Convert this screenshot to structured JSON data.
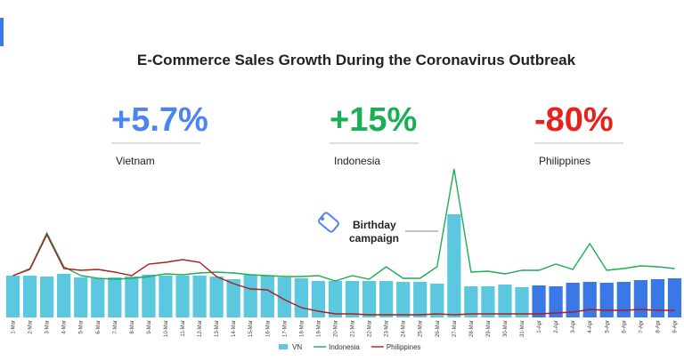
{
  "chart_data": {
    "type": "bar_line",
    "title": "E-Commerce Sales Growth During the Coronavirus Outbreak",
    "stats": [
      {
        "value_label": "+5.7%",
        "country": "Vietnam",
        "color": "#4c84f0"
      },
      {
        "value_label": "+15%",
        "country": "Indonesia",
        "color": "#1aae55"
      },
      {
        "value_label": "-80%",
        "country": "Philippines",
        "color": "#e8211c"
      }
    ],
    "annotation": [
      "Birthday",
      "campaign"
    ],
    "categories": [
      "1-Mar",
      "2-Mar",
      "3-Mar",
      "4-Mar",
      "5-Mar",
      "6-Mar",
      "7-Mar",
      "8-Mar",
      "9-Mar",
      "10-Mar",
      "11-Mar",
      "12-Mar",
      "13-Mar",
      "14-Mar",
      "15-Mar",
      "16-Mar",
      "17-Mar",
      "18-Mar",
      "19-Mar",
      "20-Mar",
      "21-Mar",
      "22-Mar",
      "23-Mar",
      "24-Mar",
      "25-Mar",
      "26-Mar",
      "27-Mar",
      "28-Mar",
      "29-Mar",
      "30-Mar",
      "31-Mar",
      "1-Apr",
      "2-Apr",
      "3-Apr",
      "4-Apr",
      "5-Apr",
      "6-Apr",
      "7-Apr",
      "8-Apr",
      "9-Apr"
    ],
    "series": [
      {
        "name": "VN",
        "kind": "bar",
        "color": "#5bc8e0",
        "highlight_color": "#3b78e7",
        "highlight_from": "1-Apr",
        "values": [
          47,
          47,
          46,
          49,
          45,
          44,
          45,
          46,
          48,
          47,
          47,
          47,
          46,
          43,
          48,
          47,
          45,
          44,
          41,
          41,
          41,
          41,
          41,
          40,
          40,
          38,
          116,
          35,
          35,
          37,
          34,
          36,
          35,
          39,
          40,
          39,
          40,
          42,
          43,
          44
        ]
      },
      {
        "name": "Indonesia",
        "kind": "line",
        "color": "#1aae55",
        "values": [
          47,
          55,
          95,
          57,
          47,
          44,
          43,
          44,
          46,
          49,
          48,
          50,
          51,
          50,
          48,
          47,
          46,
          46,
          47,
          41,
          47,
          43,
          57,
          44,
          44,
          57,
          167,
          51,
          52,
          49,
          53,
          53,
          60,
          54,
          83,
          53,
          55,
          58,
          57,
          55
        ]
      },
      {
        "name": "Philippines",
        "kind": "line",
        "color": "#b01c1c",
        "values": [
          47,
          54,
          93,
          55,
          53,
          54,
          51,
          47,
          60,
          62,
          65,
          62,
          46,
          38,
          32,
          31,
          20,
          11,
          7,
          4,
          4,
          3,
          3,
          3,
          3,
          4,
          3,
          4,
          4,
          4,
          4,
          4,
          5,
          6,
          9,
          8,
          8,
          9,
          8,
          8
        ]
      }
    ]
  }
}
